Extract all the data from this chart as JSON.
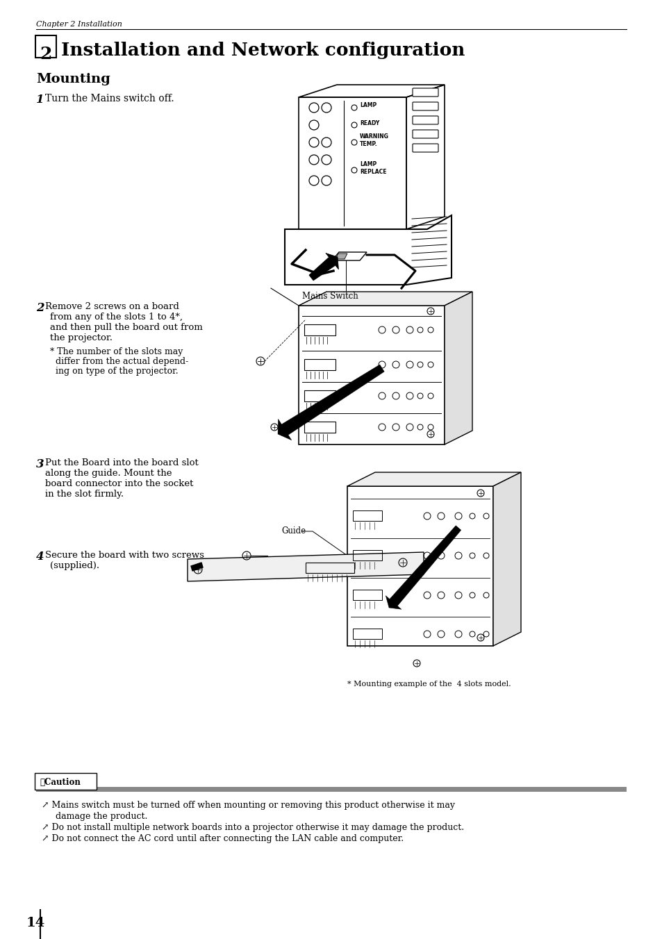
{
  "page_width": 9.54,
  "page_height": 13.52,
  "dpi": 100,
  "bg_color": "#ffffff",
  "header_text": "Chapter 2 Installation",
  "title_number": "2",
  "title_text": " Installation and Network configuration",
  "section_title": "Mounting",
  "step1_bold": "1",
  "step1_text": " Turn the Mains switch off.",
  "mains_switch_label": "Mains Switch",
  "lamp_labels": [
    "LAMP",
    "READY",
    "WARNING\nTEMP.",
    "LAMP\nREPLACE"
  ],
  "step2_bold": "2",
  "step2_line1": " Remove 2 screws on a board",
  "step2_lines": [
    "from any of the slots 1 to 4*,",
    "and then pull the board out from",
    "the projector.",
    "* The number of the slots may",
    "  differ from the actual depend-",
    "  ing on type of the projector."
  ],
  "step3_bold": "3",
  "step3_lines": [
    " Put the Board into the board slot",
    "along the guide. Mount the",
    "board connector into the socket",
    "in the slot firmly."
  ],
  "guide_label": "Guide",
  "step4_bold": "4",
  "step4_lines": [
    " Secure the board with two screws",
    "(supplied)."
  ],
  "mounting_note": "* Mounting example of the  4 slots model.",
  "caution_title": "⚠Caution",
  "caution_bullet": "↗",
  "caution_lines": [
    "Mains switch must be turned off when mounting or removing this product otherwise it may damage the product.",
    "Do not install multiple network boards into a projector otherwise it may damage the product.",
    "Do not connect the AC cord until after connecting the LAN cable and computer."
  ],
  "page_number": "14",
  "text_color": "#000000",
  "gray_color": "#999999",
  "light_gray": "#dddddd",
  "mid_gray": "#888888"
}
